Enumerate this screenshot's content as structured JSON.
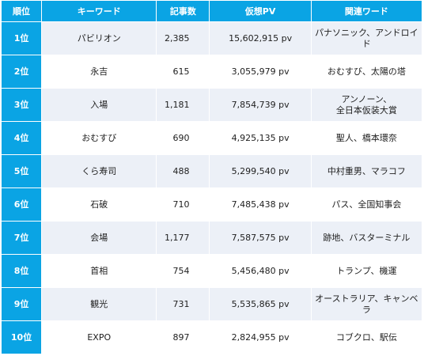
{
  "table": {
    "headers": [
      "順位",
      "キーワード",
      "記事数",
      "仮想PV",
      "関連ワード"
    ],
    "rows": [
      {
        "rank": "1位",
        "keyword": "パビリオン",
        "articles": "2,385",
        "pv": "15,602,915 pv",
        "related": "パナソニック、アンドロイド"
      },
      {
        "rank": "2位",
        "keyword": "永吉",
        "articles": "615",
        "pv": "3,055,979 pv",
        "related": "おむすび、太陽の塔"
      },
      {
        "rank": "3位",
        "keyword": "入場",
        "articles": "1,181",
        "pv": "7,854,739 pv",
        "related": "アンノーン、\n全日本仮装大賞"
      },
      {
        "rank": "4位",
        "keyword": "おむすび",
        "articles": "690",
        "pv": "4,925,135 pv",
        "related": "聖人、橋本環奈"
      },
      {
        "rank": "5位",
        "keyword": "くら寿司",
        "articles": "488",
        "pv": "5,299,540 pv",
        "related": "中村重男、マラコフ"
      },
      {
        "rank": "6位",
        "keyword": "石破",
        "articles": "710",
        "pv": "7,485,438 pv",
        "related": "パス、全国知事会"
      },
      {
        "rank": "7位",
        "keyword": "会場",
        "articles": "1,177",
        "pv": "7,587,575 pv",
        "related": "跡地、バスターミナル"
      },
      {
        "rank": "8位",
        "keyword": "首相",
        "articles": "754",
        "pv": "5,456,480 pv",
        "related": "トランプ、機運"
      },
      {
        "rank": "9位",
        "keyword": "観光",
        "articles": "731",
        "pv": "5,535,865 pv",
        "related": "オーストラリア、キャンベラ"
      },
      {
        "rank": "10位",
        "keyword": "EXPO",
        "articles": "897",
        "pv": "2,824,955 pv",
        "related": "コブクロ、駅伝"
      }
    ]
  },
  "colors": {
    "header_bg": "#0aa4e4",
    "stripe_bg": "#ecf0f7",
    "text": "#1e1e1e"
  }
}
